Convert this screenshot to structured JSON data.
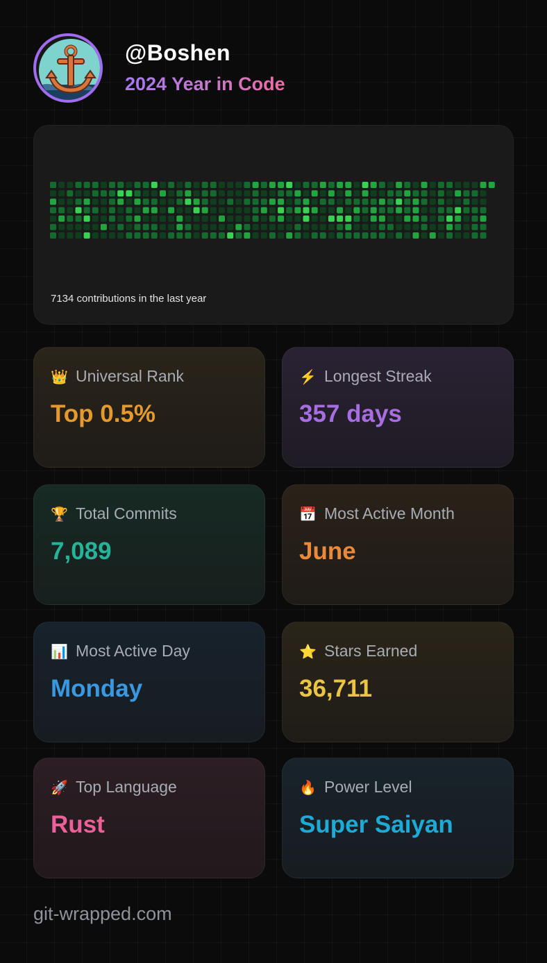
{
  "user": {
    "handle": "@Boshen",
    "subtitle": "2024 Year in Code",
    "avatar_icon": "anchor-icon",
    "avatar_border_color": "#a06cf0"
  },
  "contributions": {
    "summary": "7134 contributions in the last year",
    "palette": [
      "#0f3d1e",
      "#146b2e",
      "#21a63f",
      "#39d353"
    ]
  },
  "stats": [
    {
      "icon": "👑",
      "icon_name": "crown-icon",
      "label": "Universal Rank",
      "value": "Top 0.5%",
      "color": "#e49a2c"
    },
    {
      "icon": "⚡",
      "icon_name": "lightning-icon",
      "label": "Longest Streak",
      "value": "357 days",
      "color": "#a66ee0"
    },
    {
      "icon": "🏆",
      "icon_name": "trophy-icon",
      "label": "Total Commits",
      "value": "7,089",
      "color": "#26b39a"
    },
    {
      "icon": "📅",
      "icon_name": "calendar-icon",
      "label": "Most Active Month",
      "value": "June",
      "color": "#e9893a"
    },
    {
      "icon": "📊",
      "icon_name": "bar-chart-icon",
      "label": "Most Active Day",
      "value": "Monday",
      "color": "#3a98e0"
    },
    {
      "icon": "⭐",
      "icon_name": "star-icon",
      "label": "Stars Earned",
      "value": "36,711",
      "color": "#ecc443"
    },
    {
      "icon": "🚀",
      "icon_name": "rocket-icon",
      "label": "Top Language",
      "value": "Rust",
      "color": "#ec5f98"
    },
    {
      "icon": "🔥",
      "icon_name": "fire-icon",
      "label": "Power Level",
      "value": "Super Saiyan",
      "color": "#1fa9d6"
    }
  ],
  "footer": {
    "site": "git-wrapped.com"
  }
}
